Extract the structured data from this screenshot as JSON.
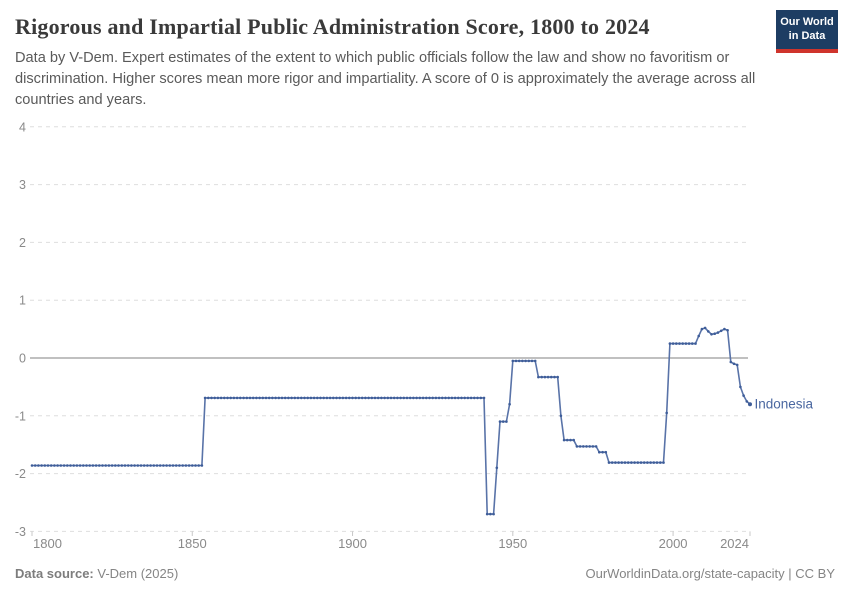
{
  "header": {
    "title": "Rigorous and Impartial Public Administration Score, 1800 to 2024",
    "subtitle": "Data by V-Dem. Expert estimates of the extent to which public officials follow the law and show no favoritism or discrimination. Higher scores mean more rigor and impartiality. A score of 0 is approximately the average across all countries and years.",
    "logo": {
      "line1": "Our World",
      "line2": "in Data"
    }
  },
  "footer": {
    "source_label": "Data source:",
    "source_value": " V-Dem (2025)",
    "right_text": "OurWorldinData.org/state-capacity | CC BY"
  },
  "colors": {
    "line": "#5973a8",
    "marker": "#3e5d99",
    "grid": "#dedede",
    "zero_line": "#9a9a9a",
    "axis_text": "#8a8a8a",
    "tick_mark": "#c8c8c8",
    "entity_label": "#4a67a0"
  },
  "chart_data": {
    "type": "line",
    "title": "Rigorous and Impartial Public Administration Score, 1800 to 2024",
    "entity": "Indonesia",
    "xlabel": "",
    "ylabel": "",
    "x_ticks": [
      1800,
      1850,
      1900,
      1950,
      2000,
      2024
    ],
    "y_ticks": [
      4,
      3,
      2,
      1,
      0,
      -1,
      -2,
      -3
    ],
    "xlim": [
      1800,
      2024
    ],
    "ylim": [
      -3,
      4
    ],
    "grid": "dashed horizontal",
    "legend_position": "right-of-line-end",
    "series": [
      {
        "name": "Indonesia",
        "step_segments": [
          {
            "from": 1800,
            "to": 1853,
            "value": -1.86
          },
          {
            "from": 1854,
            "to": 1941,
            "value": -0.69
          },
          {
            "from": 1942,
            "to": 1944,
            "value": -2.7
          },
          {
            "from": 1945,
            "to": 1945,
            "value": -1.9
          },
          {
            "from": 1946,
            "to": 1948,
            "value": -1.1
          },
          {
            "from": 1949,
            "to": 1949,
            "value": -0.8
          },
          {
            "from": 1950,
            "to": 1957,
            "value": -0.05
          },
          {
            "from": 1958,
            "to": 1964,
            "value": -0.33
          },
          {
            "from": 1965,
            "to": 1965,
            "value": -1.0
          },
          {
            "from": 1966,
            "to": 1969,
            "value": -1.42
          },
          {
            "from": 1970,
            "to": 1976,
            "value": -1.53
          },
          {
            "from": 1977,
            "to": 1979,
            "value": -1.63
          },
          {
            "from": 1980,
            "to": 1997,
            "value": -1.81
          },
          {
            "from": 1998,
            "to": 1998,
            "value": -0.95
          },
          {
            "from": 1999,
            "to": 2007,
            "value": 0.25
          },
          {
            "from": 2008,
            "to": 2008,
            "value": 0.38
          },
          {
            "from": 2009,
            "to": 2009,
            "value": 0.5
          },
          {
            "from": 2010,
            "to": 2010,
            "value": 0.52
          },
          {
            "from": 2011,
            "to": 2011,
            "value": 0.46
          },
          {
            "from": 2012,
            "to": 2012,
            "value": 0.41
          },
          {
            "from": 2013,
            "to": 2013,
            "value": 0.42
          },
          {
            "from": 2014,
            "to": 2014,
            "value": 0.44
          },
          {
            "from": 2015,
            "to": 2015,
            "value": 0.47
          },
          {
            "from": 2016,
            "to": 2016,
            "value": 0.5
          },
          {
            "from": 2017,
            "to": 2017,
            "value": 0.48
          },
          {
            "from": 2018,
            "to": 2018,
            "value": -0.07
          },
          {
            "from": 2019,
            "to": 2019,
            "value": -0.1
          },
          {
            "from": 2020,
            "to": 2020,
            "value": -0.12
          },
          {
            "from": 2021,
            "to": 2021,
            "value": -0.5
          },
          {
            "from": 2022,
            "to": 2022,
            "value": -0.65
          },
          {
            "from": 2023,
            "to": 2023,
            "value": -0.75
          },
          {
            "from": 2024,
            "to": 2024,
            "value": -0.8
          }
        ]
      }
    ]
  }
}
